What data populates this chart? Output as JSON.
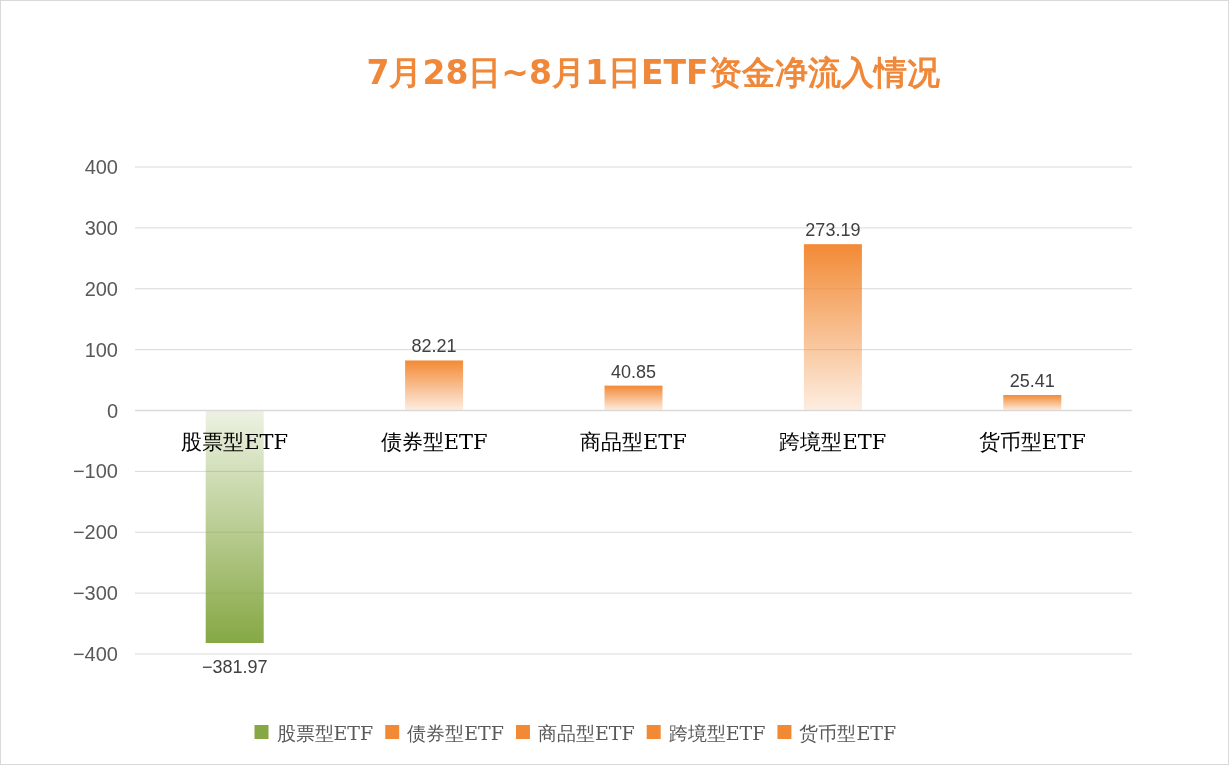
{
  "chart_data": {
    "type": "bar",
    "title": "7月28日~8月1日ETF资金净流入情况",
    "categories": [
      "股票型ETF",
      "债券型ETF",
      "商品型ETF",
      "跨境型ETF",
      "货币型ETF"
    ],
    "series": [
      {
        "name": "股票型ETF",
        "color": "#86a844",
        "values": [
          -381.97,
          null,
          null,
          null,
          null
        ]
      },
      {
        "name": "债券型ETF",
        "color": "#f28a35",
        "values": [
          null,
          82.21,
          null,
          null,
          null
        ]
      },
      {
        "name": "商品型ETF",
        "color": "#f28a35",
        "values": [
          null,
          null,
          40.85,
          null,
          null
        ]
      },
      {
        "name": "跨境型ETF",
        "color": "#f28a35",
        "values": [
          null,
          null,
          null,
          273.19,
          null
        ]
      },
      {
        "name": "货币型ETF",
        "color": "#f28a35",
        "values": [
          null,
          null,
          null,
          null,
          25.41
        ]
      }
    ],
    "stacked": true,
    "ylim": [
      -400,
      400
    ],
    "yticks": [
      {
        "value": -400,
        "label": "−400"
      },
      {
        "value": -300,
        "label": "−300"
      },
      {
        "value": -200,
        "label": "−200"
      },
      {
        "value": -100,
        "label": "−100"
      },
      0,
      100,
      200,
      300,
      400
    ],
    "grid": "y",
    "data_labels": true,
    "legend": "bottom"
  }
}
